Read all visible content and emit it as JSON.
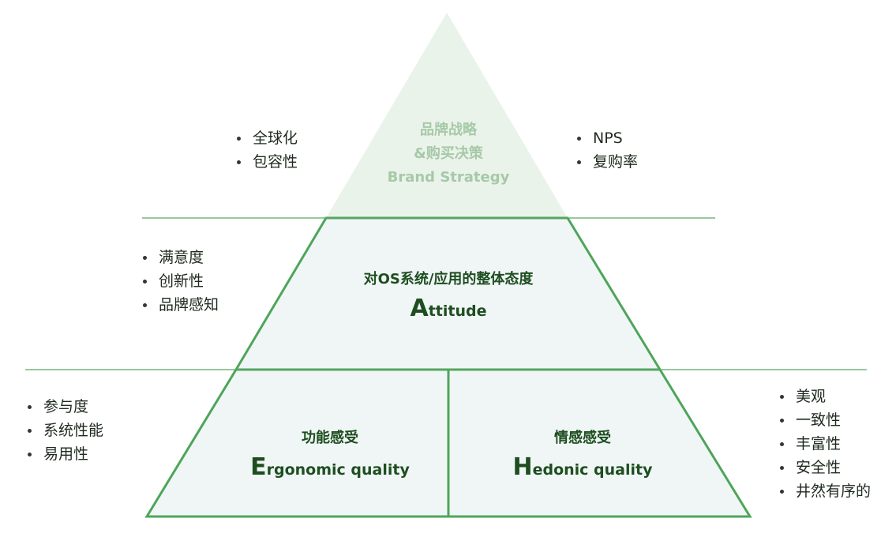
{
  "colors": {
    "stroke": "#4ea55a",
    "top_fill": "#eaf3ea",
    "body_fill": "#f0f6f6",
    "line": "#5aa864",
    "top_text": "#a6c9a8",
    "dark_text": "#1e4e20"
  },
  "top": {
    "line1": "品牌战略",
    "line2": "&购买决策",
    "line3": "Brand Strategy"
  },
  "middle": {
    "zh": "对OS系统/应用的整体态度",
    "en_initial": "A",
    "en_rest": "ttitude"
  },
  "bottom_left": {
    "zh": "功能感受",
    "en_initial": "E",
    "en_rest": "rgonomic quality"
  },
  "bottom_right": {
    "zh": "情感感受",
    "en_initial": "H",
    "en_rest": "edonic quality"
  },
  "lists": {
    "top_left": [
      "全球化",
      "包容性"
    ],
    "top_right": [
      "NPS",
      "复购率"
    ],
    "middle_left": [
      "满意度",
      "创新性",
      "品牌感知"
    ],
    "bottom_left": [
      "参与度",
      "系统性能",
      "易用性"
    ],
    "bottom_right": [
      "美观",
      "一致性",
      "丰富性",
      "安全性",
      "井然有序的"
    ]
  }
}
